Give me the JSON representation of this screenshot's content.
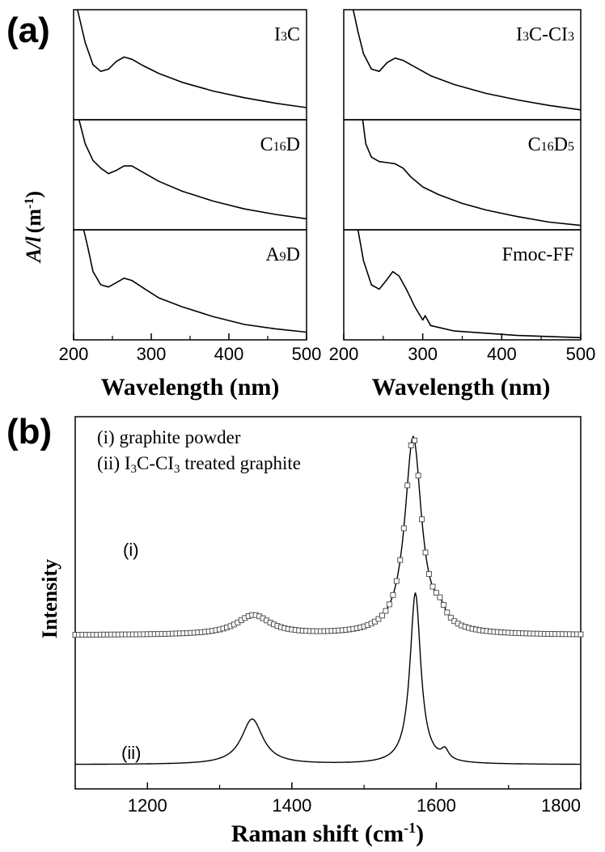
{
  "panel_a_label": "(a)",
  "panel_b_label": "(b)",
  "chart_data": [
    {
      "type": "line",
      "panel": "(a)",
      "ylabel_main": "A/l",
      "ylabel_unit": "(m",
      "ylabel_exp": "-1",
      "ylabel_close": ")",
      "xlabel": "Wavelength (nm)",
      "xlim": [
        200,
        500
      ],
      "xticks": [
        "200",
        "300",
        "400",
        "500"
      ],
      "subplots": [
        {
          "name": "I3C",
          "label_main": "I",
          "label_sub": "3",
          "label_tail": "C",
          "label_sub2": "",
          "label_tail2": "",
          "x": [
            205,
            215,
            225,
            235,
            245,
            255,
            265,
            275,
            290,
            310,
            340,
            380,
            420,
            460,
            500
          ],
          "y": [
            1.0,
            0.7,
            0.5,
            0.44,
            0.46,
            0.53,
            0.57,
            0.55,
            0.49,
            0.42,
            0.34,
            0.26,
            0.2,
            0.15,
            0.11
          ]
        },
        {
          "name": "C16D",
          "label_main": "C",
          "label_sub": "16",
          "label_tail": "D",
          "label_sub2": "",
          "label_tail2": "",
          "x": [
            207,
            215,
            225,
            235,
            245,
            255,
            265,
            275,
            290,
            310,
            340,
            380,
            420,
            460,
            500
          ],
          "y": [
            1.0,
            0.78,
            0.63,
            0.56,
            0.51,
            0.54,
            0.58,
            0.58,
            0.52,
            0.44,
            0.35,
            0.26,
            0.19,
            0.14,
            0.1
          ]
        },
        {
          "name": "A9D",
          "label_main": "A",
          "label_sub": "9",
          "label_tail": "D",
          "label_sub2": "",
          "label_tail2": "",
          "x": [
            213,
            218,
            225,
            235,
            245,
            255,
            265,
            275,
            290,
            310,
            340,
            380,
            420,
            460,
            500
          ],
          "y": [
            1.0,
            0.85,
            0.62,
            0.5,
            0.48,
            0.52,
            0.56,
            0.54,
            0.47,
            0.38,
            0.3,
            0.21,
            0.14,
            0.1,
            0.07
          ]
        },
        {
          "name": "I3C-CI3",
          "label_main": "I",
          "label_sub": "3",
          "label_tail": "C-CI",
          "label_sub2": "3",
          "label_tail2": "",
          "x": [
            212,
            218,
            225,
            235,
            245,
            255,
            265,
            275,
            290,
            310,
            340,
            380,
            420,
            460,
            500
          ],
          "y": [
            1.0,
            0.8,
            0.6,
            0.46,
            0.44,
            0.52,
            0.56,
            0.54,
            0.48,
            0.4,
            0.32,
            0.24,
            0.18,
            0.13,
            0.09
          ]
        },
        {
          "name": "C16D5",
          "label_main": "C",
          "label_sub": "16",
          "label_tail": "D",
          "label_sub2": "5",
          "label_tail2": "",
          "x": [
            224,
            228,
            235,
            245,
            255,
            265,
            275,
            285,
            300,
            320,
            350,
            380,
            420,
            460,
            500
          ],
          "y": [
            1.0,
            0.78,
            0.66,
            0.62,
            0.61,
            0.6,
            0.56,
            0.48,
            0.39,
            0.32,
            0.24,
            0.18,
            0.12,
            0.07,
            0.04
          ]
        },
        {
          "name": "Fmoc-FF",
          "label_main": "Fmoc-FF",
          "label_sub": "",
          "label_tail": "",
          "label_sub2": "",
          "label_tail2": "",
          "x": [
            218,
            225,
            235,
            245,
            255,
            262,
            270,
            280,
            290,
            300,
            303,
            310,
            340,
            380,
            420,
            460,
            500
          ],
          "y": [
            1.0,
            0.72,
            0.5,
            0.46,
            0.55,
            0.62,
            0.58,
            0.45,
            0.3,
            0.18,
            0.22,
            0.13,
            0.08,
            0.06,
            0.04,
            0.03,
            0.02
          ]
        }
      ]
    },
    {
      "type": "line",
      "panel": "(b)",
      "xlabel_main": "Raman shift (cm",
      "xlabel_exp": "-1",
      "xlabel_close": ")",
      "ylabel": "Intensity",
      "xlim": [
        1100,
        1800
      ],
      "xticks": [
        "1200",
        "1400",
        "1600",
        "1800"
      ],
      "legend": [
        {
          "prefix": "(i) graphite powder",
          "main": "",
          "sub": "",
          "tail": "",
          "sub2": "",
          "tail2": ""
        },
        {
          "prefix": "(ii) I",
          "main": "",
          "sub": "3",
          "tail": "C-CI",
          "sub2": "3",
          "tail2": " treated graphite"
        }
      ],
      "series": [
        {
          "name": "(i)",
          "marker": "square",
          "baseline": 0.4,
          "peaks": [
            {
              "x": 1347,
              "h": 0.06,
              "w": 28
            },
            {
              "x": 1568,
              "h": 0.61,
              "w": 14
            },
            {
              "x": 1605,
              "h": 0.04,
              "w": 10
            }
          ]
        },
        {
          "name": "(ii)",
          "marker": "none",
          "baseline": 0.0,
          "peaks": [
            {
              "x": 1345,
              "h": 0.14,
              "w": 18
            },
            {
              "x": 1571,
              "h": 0.53,
              "w": 9
            },
            {
              "x": 1612,
              "h": 0.03,
              "w": 6
            }
          ]
        }
      ]
    }
  ]
}
